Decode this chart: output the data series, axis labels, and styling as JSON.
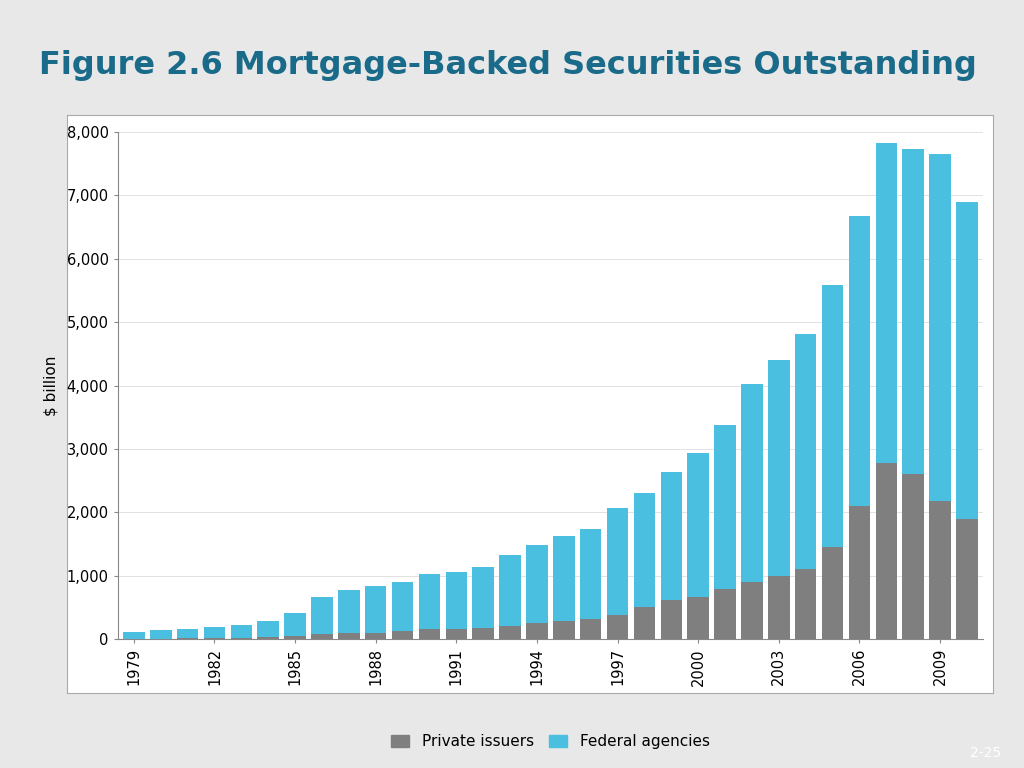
{
  "title": "Figure 2.6 Mortgage-Backed Securities Outstanding",
  "title_color": "#1a6b8a",
  "header_bar_color": "#1d5f72",
  "footer_bar_color": "#1d5f72",
  "red_line_color": "#c0392b",
  "ylabel": "$ billion",
  "years": [
    1979,
    1980,
    1981,
    1982,
    1983,
    1984,
    1985,
    1986,
    1987,
    1988,
    1989,
    1990,
    1991,
    1992,
    1993,
    1994,
    1995,
    1996,
    1997,
    1998,
    1999,
    2000,
    2001,
    2002,
    2003,
    2004,
    2005,
    2006,
    2007,
    2008,
    2009,
    2010
  ],
  "private_issuers": [
    0,
    5,
    8,
    15,
    20,
    30,
    40,
    80,
    90,
    100,
    120,
    150,
    160,
    180,
    200,
    250,
    280,
    310,
    380,
    500,
    620,
    660,
    790,
    900,
    1000,
    1100,
    1450,
    2100,
    2780,
    2600,
    2170,
    1900
  ],
  "federal_agencies": [
    110,
    140,
    150,
    170,
    200,
    260,
    370,
    580,
    680,
    730,
    780,
    870,
    900,
    950,
    1130,
    1240,
    1350,
    1430,
    1680,
    1800,
    2020,
    2280,
    2590,
    3120,
    3400,
    3720,
    4140,
    4570,
    5050,
    5140,
    5480,
    5000
  ],
  "private_color": "#7f7f7f",
  "federal_color": "#4bbfe0",
  "outer_bg": "#e8e8e8",
  "white_bg": "#ffffff",
  "ylim": [
    0,
    8000
  ],
  "yticks": [
    0,
    1000,
    2000,
    3000,
    4000,
    5000,
    6000,
    7000,
    8000
  ],
  "xtick_years": [
    1979,
    1982,
    1985,
    1988,
    1991,
    1994,
    1997,
    2000,
    2003,
    2006,
    2009
  ],
  "page_label": "2-25",
  "bar_width": 0.8,
  "legend_labels": [
    "Private issuers",
    "Federal agencies"
  ]
}
